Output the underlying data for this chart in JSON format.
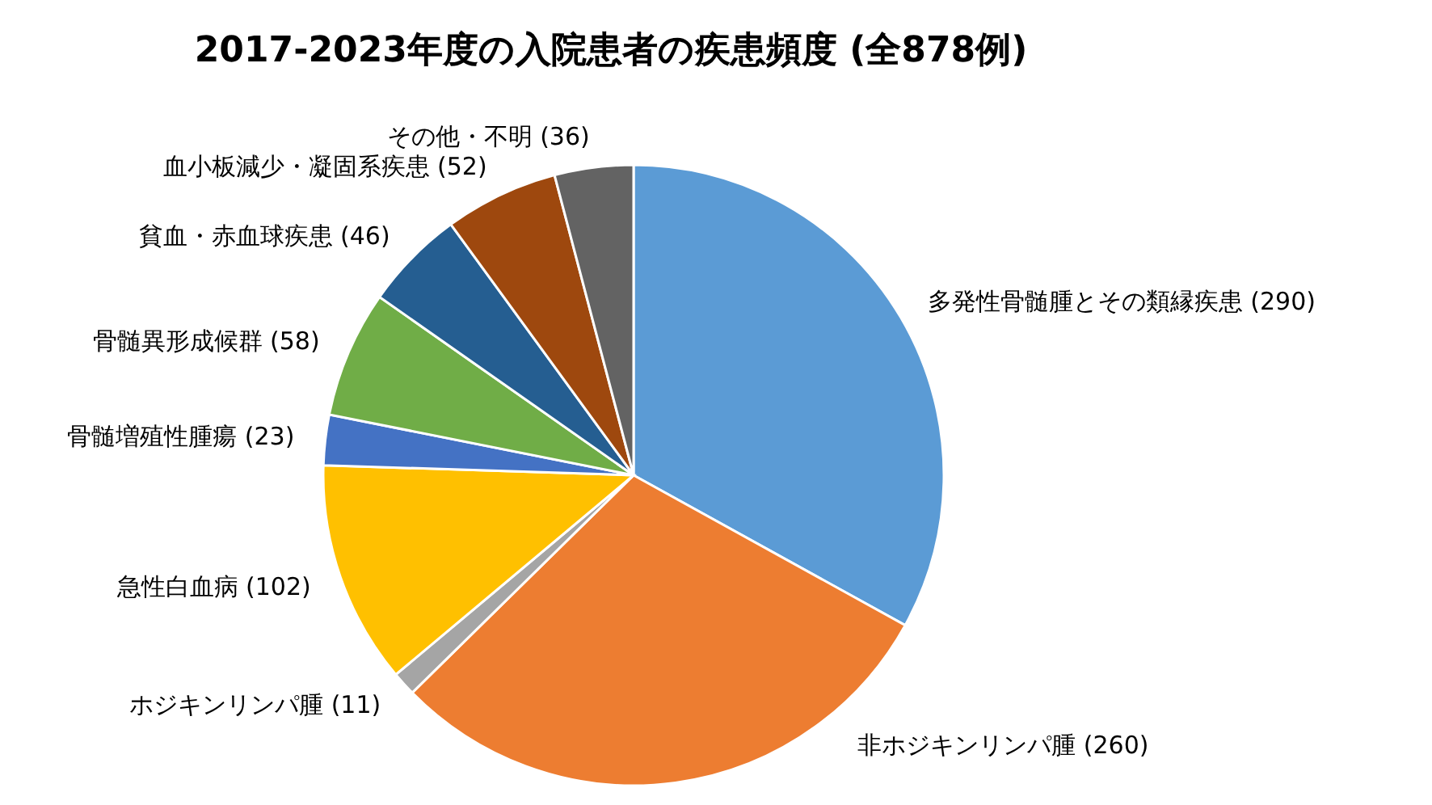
{
  "chart_data": {
    "type": "pie",
    "title": "2017-2023年度の入院患者の疾患頻度 (全878例)",
    "categories": [
      "多発性骨髄腫とその類縁疾患",
      "非ホジキンリンパ腫",
      "ホジキンリンパ腫",
      "急性白血病",
      "骨髄増殖性腫瘍",
      "骨髄異形成候群",
      "貧血・赤血球疾患",
      "血小板減少・凝固系疾患",
      "その他・不明"
    ],
    "values": [
      290,
      260,
      11,
      102,
      23,
      58,
      46,
      52,
      36
    ],
    "colors": [
      "#5b9bd5",
      "#ed7d31",
      "#a5a5a5",
      "#ffc000",
      "#4472c4",
      "#70ad47",
      "#255e91",
      "#9e480e",
      "#636363"
    ],
    "value_labels": [
      "(290)",
      "(260)",
      "(11)",
      "(102)",
      "(23)",
      "(58)",
      "(46)",
      "(52)",
      "(36)"
    ]
  }
}
